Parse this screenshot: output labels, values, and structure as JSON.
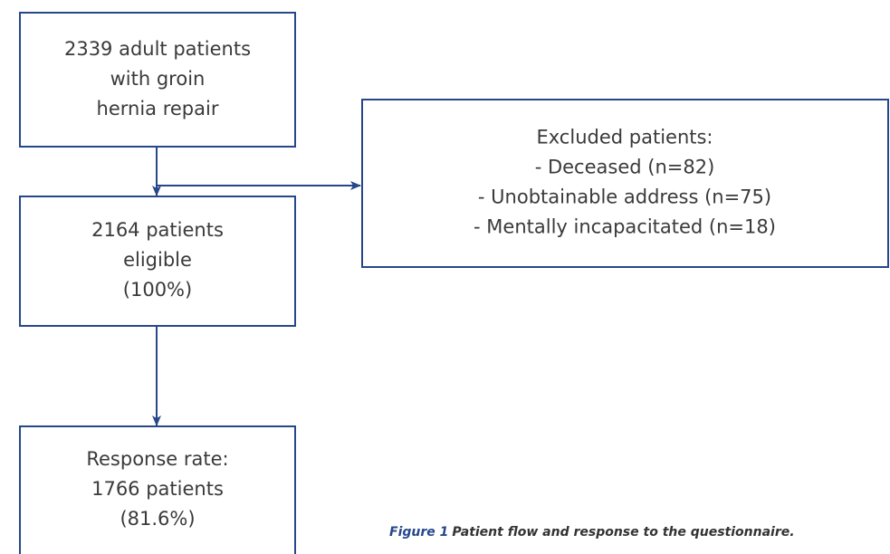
{
  "nodes": [
    {
      "lines": [
        "2339 adult patients",
        "with groin",
        "hernia repair"
      ]
    },
    {
      "lines": [
        "Excluded patients:",
        "- Deceased (n=82)",
        "- Unobtainable address (n=75)",
        "- Mentally incapacitated (n=18)"
      ]
    },
    {
      "lines": [
        "2164 patients",
        "eligible",
        "(100%)"
      ]
    },
    {
      "lines": [
        "Response rate:",
        "1766 patients",
        "(81.6%)"
      ]
    }
  ],
  "caption": {
    "label": "Figure 1",
    "text": "Patient flow and response to the questionnaire."
  }
}
